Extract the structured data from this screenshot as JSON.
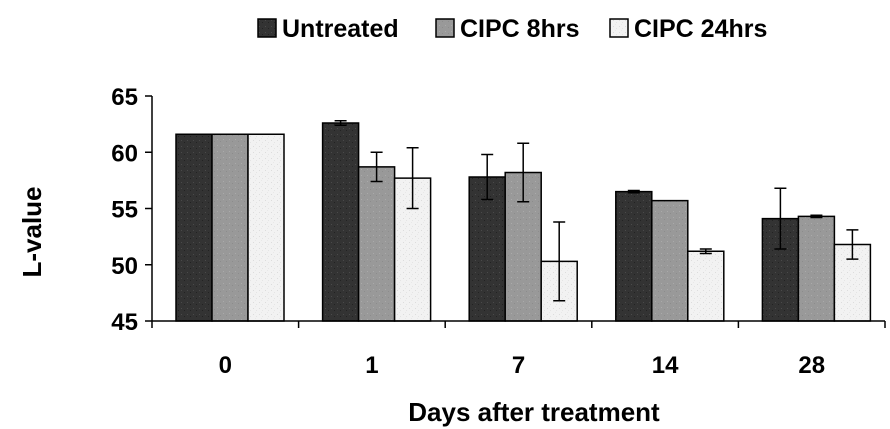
{
  "chart_data": {
    "type": "bar",
    "xlabel": "Days after treatment",
    "ylabel": "L-value",
    "categories": [
      "0",
      "1",
      "7",
      "14",
      "28"
    ],
    "ylim": [
      45,
      65
    ],
    "yticks": [
      "45",
      "50",
      "55",
      "60",
      "65"
    ],
    "legend_position": "top",
    "grid": false,
    "series": [
      {
        "name": "Untreated",
        "color": "#333333",
        "values": [
          61.6,
          62.6,
          57.8,
          56.5,
          54.1
        ],
        "errors": [
          0,
          0.2,
          2.0,
          0.1,
          2.7
        ]
      },
      {
        "name": "CIPC 8hrs",
        "color": "#999999",
        "values": [
          61.6,
          58.7,
          58.2,
          55.7,
          54.3
        ],
        "errors": [
          0,
          1.3,
          2.6,
          0,
          0.1
        ]
      },
      {
        "name": "CIPC 24hrs",
        "color": "#f0f0f0",
        "values": [
          61.6,
          57.7,
          50.3,
          51.2,
          51.8
        ],
        "errors": [
          0,
          2.7,
          3.5,
          0.2,
          1.3
        ]
      }
    ]
  }
}
